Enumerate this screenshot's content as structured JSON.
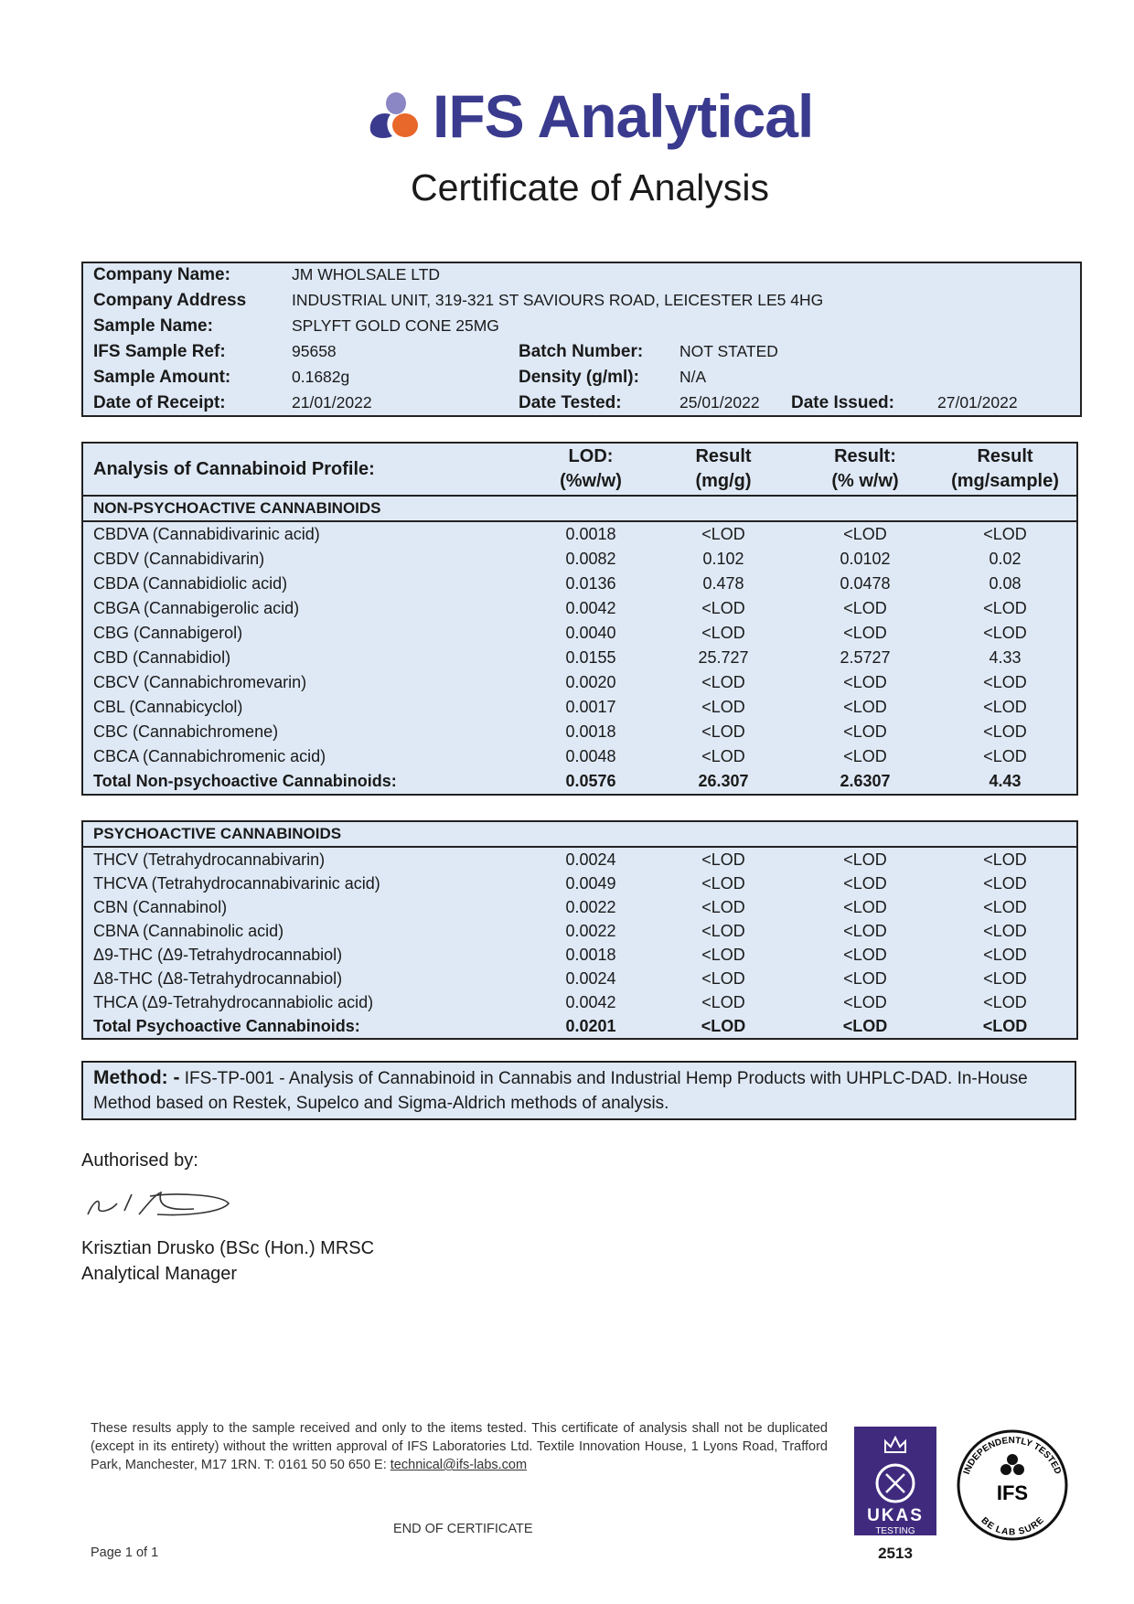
{
  "brand": {
    "name": "IFS Analytical",
    "colors": {
      "primary": "#3a3a8e",
      "orange": "#e8672a",
      "lavender": "#8a87c4",
      "box_bg": "#dfe9f6",
      "ukas": "#3f2a7e"
    }
  },
  "title": "Certificate of Analysis",
  "info": {
    "company_name_label": "Company Name:",
    "company_name": "JM WHOLSALE LTD",
    "company_address_label": "Company Address",
    "company_address": "INDUSTRIAL UNIT, 319-321 ST SAVIOURS ROAD, LEICESTER LE5 4HG",
    "sample_name_label": "Sample Name:",
    "sample_name": "SPLYFT GOLD CONE 25MG",
    "sample_ref_label": "IFS Sample Ref:",
    "sample_ref": "95658",
    "batch_label": "Batch Number:",
    "batch": "NOT STATED",
    "amount_label": "Sample Amount:",
    "amount": "0.1682g",
    "density_label": "Density (g/ml):",
    "density": "N/A",
    "receipt_label": "Date of Receipt:",
    "receipt": "21/01/2022",
    "tested_label": "Date Tested:",
    "tested": "25/01/2022",
    "issued_label": "Date Issued:",
    "issued": "27/01/2022"
  },
  "analysis": {
    "heading": "Analysis of Cannabinoid Profile:",
    "columns": [
      {
        "l1": "LOD:",
        "l2": "(%w/w)"
      },
      {
        "l1": "Result",
        "l2": "(mg/g)"
      },
      {
        "l1": "Result:",
        "l2": "(% w/w)"
      },
      {
        "l1": "Result",
        "l2": "(mg/sample)"
      }
    ],
    "non_psycho": {
      "title": "NON-PSYCHOACTIVE CANNABINOIDS",
      "rows": [
        [
          "CBDVA (Cannabidivarinic acid)",
          "0.0018",
          "<LOD",
          "<LOD",
          "<LOD"
        ],
        [
          "CBDV (Cannabidivarin)",
          "0.0082",
          "0.102",
          "0.0102",
          "0.02"
        ],
        [
          "CBDA (Cannabidiolic acid)",
          "0.0136",
          "0.478",
          "0.0478",
          "0.08"
        ],
        [
          "CBGA (Cannabigerolic acid)",
          "0.0042",
          "<LOD",
          "<LOD",
          "<LOD"
        ],
        [
          "CBG (Cannabigerol)",
          "0.0040",
          "<LOD",
          "<LOD",
          "<LOD"
        ],
        [
          "CBD (Cannabidiol)",
          "0.0155",
          "25.727",
          "2.5727",
          "4.33"
        ],
        [
          "CBCV (Cannabichromevarin)",
          "0.0020",
          "<LOD",
          "<LOD",
          "<LOD"
        ],
        [
          "CBL (Cannabicyclol)",
          "0.0017",
          "<LOD",
          "<LOD",
          "<LOD"
        ],
        [
          "CBC (Cannabichromene)",
          "0.0018",
          "<LOD",
          "<LOD",
          "<LOD"
        ],
        [
          "CBCA (Cannabichromenic acid)",
          "0.0048",
          "<LOD",
          "<LOD",
          "<LOD"
        ]
      ],
      "total": [
        "Total Non-psychoactive Cannabinoids:",
        "0.0576",
        "26.307",
        "2.6307",
        "4.43"
      ]
    },
    "psycho": {
      "title": "PSYCHOACTIVE CANNABINOIDS",
      "rows": [
        [
          "THCV (Tetrahydrocannabivarin)",
          "0.0024",
          "<LOD",
          "<LOD",
          "<LOD"
        ],
        [
          "THCVA (Tetrahydrocannabivarinic acid)",
          "0.0049",
          "<LOD",
          "<LOD",
          "<LOD"
        ],
        [
          "CBN (Cannabinol)",
          "0.0022",
          "<LOD",
          "<LOD",
          "<LOD"
        ],
        [
          "CBNA (Cannabinolic acid)",
          "0.0022",
          "<LOD",
          "<LOD",
          "<LOD"
        ],
        [
          "Δ9-THC (Δ9-Tetrahydrocannabiol)",
          "0.0018",
          "<LOD",
          "<LOD",
          "<LOD"
        ],
        [
          "Δ8-THC (Δ8-Tetrahydrocannabiol)",
          "0.0024",
          "<LOD",
          "<LOD",
          "<LOD"
        ],
        [
          "THCA (Δ9-Tetrahydrocannabiolic acid)",
          "0.0042",
          "<LOD",
          "<LOD",
          "<LOD"
        ]
      ],
      "total": [
        "Total Psychoactive Cannabinoids:",
        "0.0201",
        "<LOD",
        "<LOD",
        "<LOD"
      ]
    }
  },
  "method": {
    "label": "Method: -",
    "text": "IFS-TP-001 - Analysis of Cannabinoid in Cannabis and Industrial Hemp Products with UHPLC-DAD. In-House Method based on Restek, Supelco and Sigma-Aldrich methods of analysis."
  },
  "authorisation": {
    "label": "Authorised by:",
    "name": "Krisztian Drusko (BSc (Hon.) MRSC",
    "role": "Analytical Manager"
  },
  "footer": {
    "text": "These results apply to the sample received and only to the items tested. This certificate of analysis shall not be duplicated (except in its entirety) without the written approval of IFS Laboratories Ltd. Textile Innovation House, 1 Lyons Road, Trafford Park, Manchester, M17 1RN. T: 0161 50 50 650 E: ",
    "email": "technical@ifs-labs.com",
    "end": "END OF CERTIFICATE",
    "page": "Page 1 of 1"
  },
  "ukas": {
    "name": "UKAS",
    "sub": "TESTING",
    "number": "2513"
  },
  "seal": {
    "top": "INDEPENDENTLY TESTED",
    "mid": "IFS",
    "bottom": "BE LAB SURE"
  }
}
